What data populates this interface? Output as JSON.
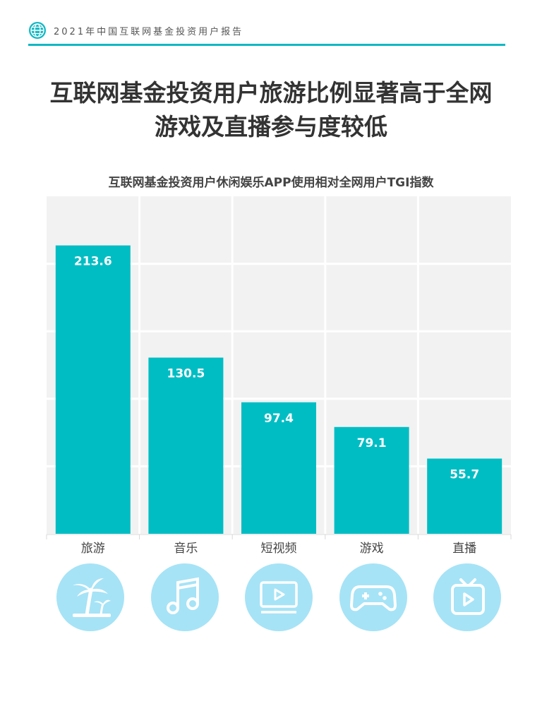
{
  "header": {
    "report_title": "2021年中国互联网基金投资用户报告"
  },
  "title": {
    "line1": "互联网基金投资用户旅游比例显著高于全网",
    "line2": "游戏及直播参与度较低"
  },
  "icons": [
    "palm-tree-icon",
    "music-note-icon",
    "video-player-icon",
    "gamepad-icon",
    "tv-icon"
  ],
  "colors": {
    "bar": "#00bdc4",
    "accent": "#12b8c4",
    "plot_bg": "#f2f2f2",
    "icon_bg": "#a6e3f6"
  },
  "chart_data": {
    "type": "bar",
    "title": "互联网基金投资用户休闲娱乐APP使用相对全网用户TGI指数",
    "categories": [
      "旅游",
      "音乐",
      "短视频",
      "游戏",
      "直播"
    ],
    "values": [
      213.6,
      130.5,
      97.4,
      79.1,
      55.7
    ],
    "xlabel": "",
    "ylabel": "",
    "ylim": [
      0,
      250
    ],
    "grid": true,
    "data_labels": [
      "213.6",
      "130.5",
      "97.4",
      "79.1",
      "55.7"
    ]
  }
}
